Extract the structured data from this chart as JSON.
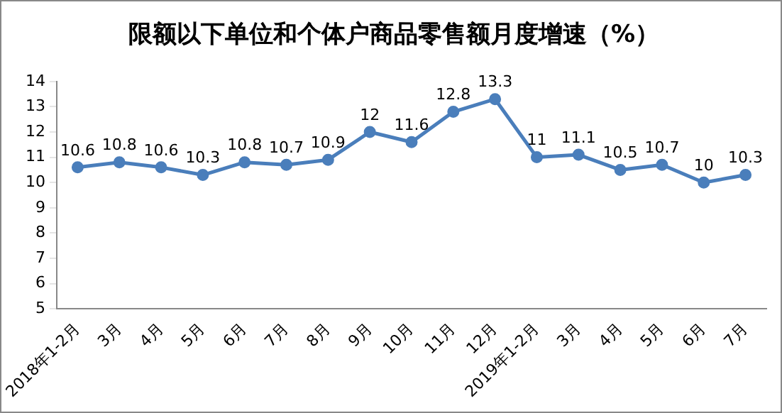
{
  "chart_data": {
    "type": "line",
    "title": "限额以下单位和个体户商品零售额月度增速（%）",
    "categories": [
      "2018年1-2月",
      "3月",
      "4月",
      "5月",
      "6月",
      "7月",
      "8月",
      "9月",
      "10月",
      "11月",
      "12月",
      "2019年1-2月",
      "3月",
      "4月",
      "5月",
      "6月",
      "7月"
    ],
    "series": [
      {
        "color": "#4a7ebb",
        "values": [
          10.6,
          10.8,
          10.6,
          10.3,
          10.8,
          10.7,
          10.9,
          12,
          11.6,
          12.8,
          13.3,
          11,
          11.1,
          10.5,
          10.7,
          10,
          10.3
        ]
      }
    ],
    "ylim": [
      5,
      14
    ],
    "yticks": [
      5,
      6,
      7,
      8,
      9,
      10,
      11,
      12,
      13,
      14
    ],
    "grid": false,
    "legend": false,
    "marker": "circle",
    "line_style": "solid",
    "data_labels": true
  }
}
